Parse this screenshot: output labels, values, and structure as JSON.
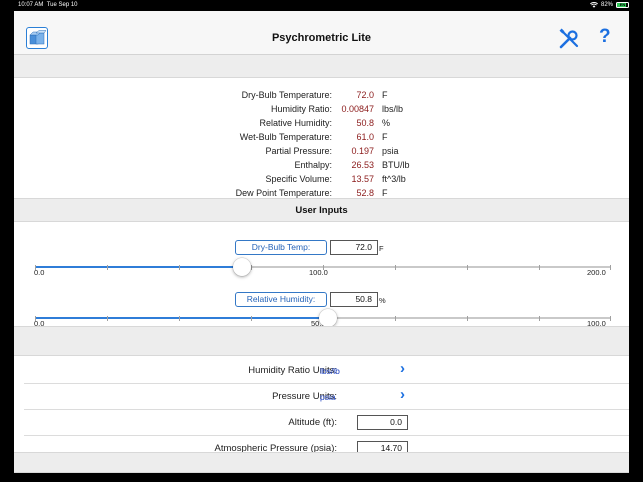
{
  "status_bar": {
    "time": "10:07 AM",
    "date": "Tue Sep 10",
    "battery_percent": "82%",
    "battery_label": "EN",
    "battery_level": 0.82,
    "battery_color": "#32c759"
  },
  "nav": {
    "title": "Psychrometric Lite",
    "left_icon": "cube-stack-icon",
    "tools_icon": "wrench-screwdriver-icon",
    "help_icon": "question-mark-icon",
    "help_glyph": "?",
    "accent_color": "#1b6fe0"
  },
  "results": [
    {
      "label": "Dry-Bulb Temperature:",
      "value": "72.0",
      "unit": "F"
    },
    {
      "label": "Humidity Ratio:",
      "value": "0.00847",
      "unit": "lbs/lb"
    },
    {
      "label": "Relative Humidity:",
      "value": "50.8",
      "unit": "%"
    },
    {
      "label": "Wet-Bulb Temperature:",
      "value": "61.0",
      "unit": "F"
    },
    {
      "label": "Partial Pressure:",
      "value": "0.197",
      "unit": "psia"
    },
    {
      "label": "Enthalpy:",
      "value": "26.53",
      "unit": "BTU/lb"
    },
    {
      "label": "Specific Volume:",
      "value": "13.57",
      "unit": "ft^3/lb"
    },
    {
      "label": "Dew Point Temperature:",
      "value": "52.8",
      "unit": "F"
    }
  ],
  "user_inputs": {
    "header": "User Inputs",
    "dry_bulb": {
      "button_label": "Dry-Bulb Temp:",
      "value": "72.0",
      "unit": "F",
      "min": 0,
      "max": 200,
      "current": 72.0,
      "min_label": "0.0",
      "mid_label": "100.0",
      "max_label": "200.0"
    },
    "relative_humidity": {
      "button_label": "Relative Humidity:",
      "value": "50.8",
      "unit": "%",
      "min": 0,
      "max": 100,
      "current": 50.8,
      "min_label": "0.0",
      "mid_label": "50.0",
      "max_label": "100.0"
    }
  },
  "settings": {
    "humidity_ratio_units": {
      "label": "Humidity Ratio Units:",
      "value": "lbs/lb",
      "chevron": "›"
    },
    "pressure_units": {
      "label": "Pressure Units:",
      "value": "psia",
      "chevron": "›"
    },
    "altitude": {
      "label": "Altitude (ft):",
      "value": "0.0"
    },
    "atmospheric_pressure": {
      "label": "Atmospheric Pressure (psia):",
      "value": "14.70"
    }
  }
}
